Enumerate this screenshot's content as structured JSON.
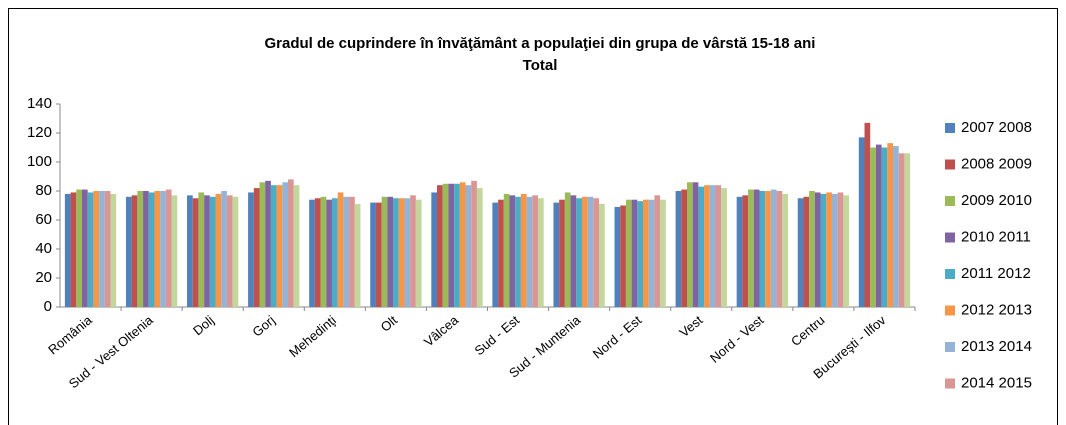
{
  "chart_data": {
    "type": "bar",
    "title": "Gradul de cuprindere în învăţământ a populaţiei din grupa de vârstă 15-18 ani",
    "subtitle": "Total",
    "categories": [
      "România",
      "Sud - Vest Oltenia",
      "Dolj",
      "Gorj",
      "Mehedinţi",
      "Olt",
      "Vâlcea",
      "Sud - Est",
      "Sud - Muntenia",
      "Nord - Est",
      "Vest",
      "Nord - Vest",
      "Centru",
      "Bucureşti - Ilfov"
    ],
    "series": [
      {
        "name": "2007 2008",
        "color": "#4f81bd",
        "values": [
          78,
          76,
          77,
          79,
          74,
          72,
          79,
          72,
          72,
          69,
          80,
          76,
          75,
          117
        ]
      },
      {
        "name": "2008 2009",
        "color": "#c0504d",
        "values": [
          79,
          77,
          75,
          82,
          75,
          72,
          84,
          74,
          74,
          70,
          81,
          77,
          76,
          127
        ]
      },
      {
        "name": "2009 2010",
        "color": "#9bbb59",
        "values": [
          81,
          80,
          79,
          86,
          76,
          76,
          85,
          78,
          79,
          74,
          86,
          81,
          80,
          110
        ]
      },
      {
        "name": "2010 2011",
        "color": "#8064a2",
        "values": [
          81,
          80,
          77,
          87,
          74,
          76,
          85,
          77,
          77,
          74,
          86,
          81,
          79,
          112
        ]
      },
      {
        "name": "2011 2012",
        "color": "#4bacc6",
        "values": [
          79,
          79,
          76,
          84,
          75,
          75,
          85,
          76,
          75,
          73,
          83,
          80,
          78,
          110
        ]
      },
      {
        "name": "2012 2013",
        "color": "#f79646",
        "values": [
          80,
          80,
          78,
          84,
          79,
          75,
          86,
          78,
          76,
          74,
          84,
          80,
          79,
          113
        ]
      },
      {
        "name": "2013 2014",
        "color": "#95b3d7",
        "values": [
          80,
          80,
          80,
          86,
          76,
          75,
          84,
          76,
          76,
          74,
          84,
          81,
          78,
          111
        ]
      },
      {
        "name": "2014 2015",
        "color": "#da9694",
        "values": [
          80,
          81,
          77,
          88,
          76,
          77,
          87,
          77,
          75,
          77,
          84,
          80,
          79,
          106
        ]
      },
      {
        "color": "#c3d69b",
        "values": [
          78,
          77,
          76,
          84,
          71,
          74,
          82,
          75,
          71,
          74,
          82,
          78,
          77,
          106
        ]
      }
    ],
    "ylim": [
      0,
      140
    ],
    "yticks": [
      0,
      20,
      40,
      60,
      80,
      100,
      120,
      140
    ],
    "grid": false,
    "legend": "right"
  }
}
